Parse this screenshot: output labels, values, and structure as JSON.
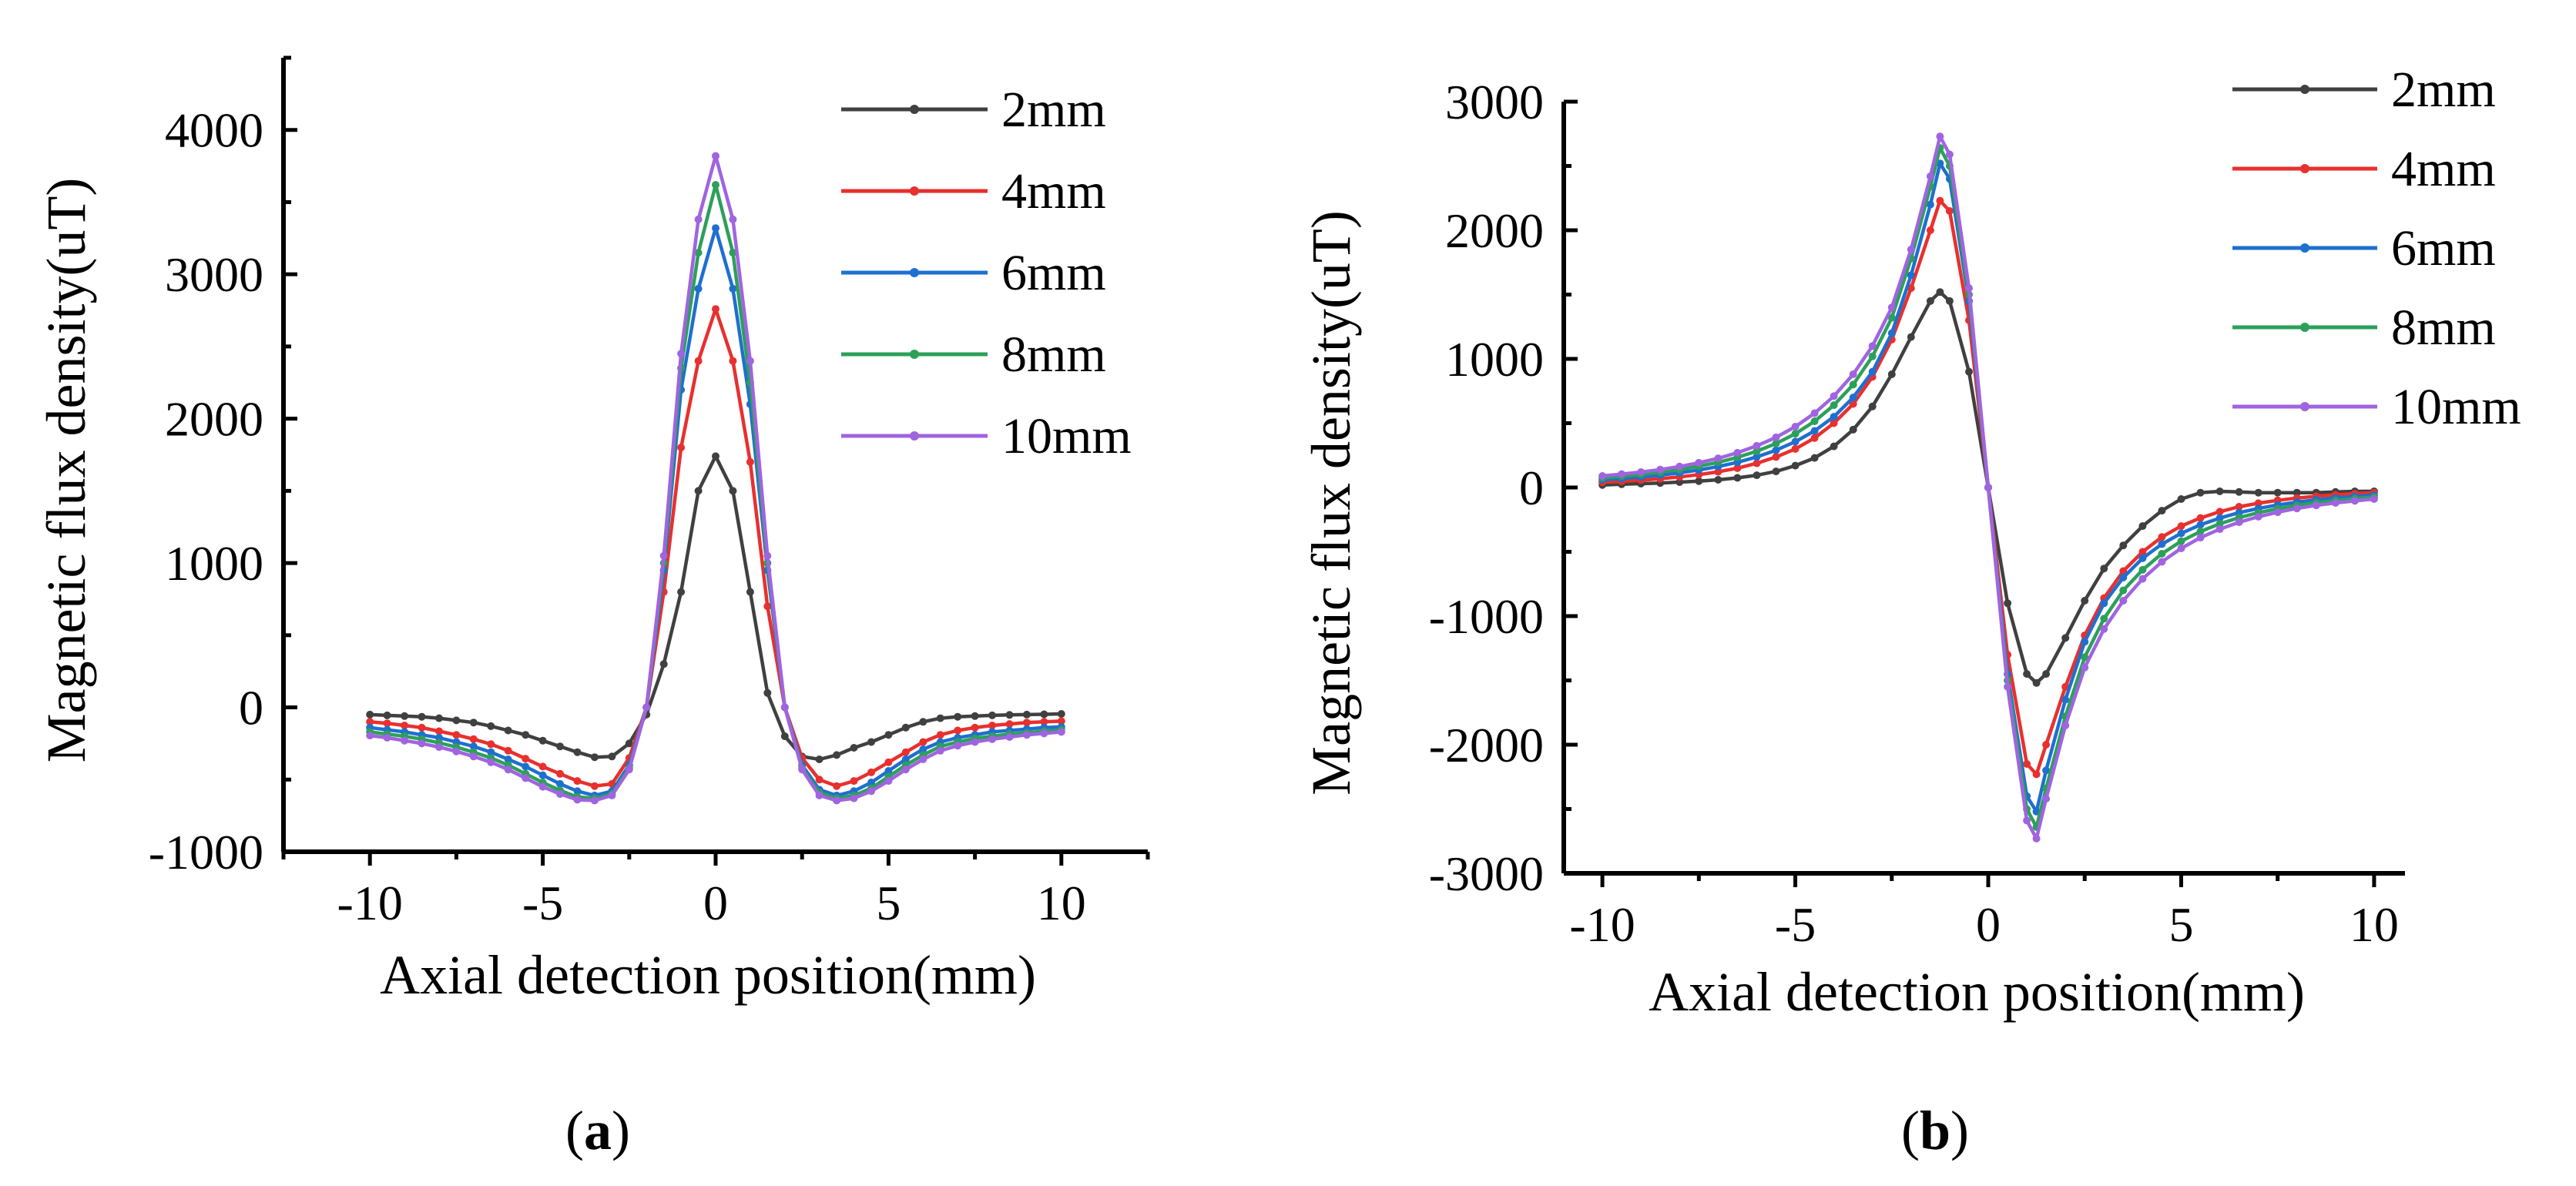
{
  "figure": {
    "panels": [
      {
        "caption_open": "(",
        "caption_letter": "a",
        "caption_close": ")"
      },
      {
        "caption_open": "(",
        "caption_letter": "b",
        "caption_close": ")"
      }
    ]
  },
  "colors": {
    "2mm": "#404040",
    "4mm": "#e8302e",
    "6mm": "#1f6fd0",
    "8mm": "#2ca05a",
    "10mm": "#a064e0"
  },
  "chart_data": [
    {
      "id": "a",
      "type": "line",
      "title": "",
      "xlabel": "Axial detection position(mm)",
      "ylabel": "Magnetic flux density(uT)",
      "xlim": [
        -12.5,
        12.5
      ],
      "ylim": [
        -1000,
        4500
      ],
      "xticks": [
        -10,
        -5,
        0,
        5,
        10
      ],
      "xtick_labels": [
        "-10",
        "-5",
        "0",
        "5",
        "10"
      ],
      "yticks": [
        -1000,
        0,
        1000,
        2000,
        3000,
        4000
      ],
      "ytick_labels": [
        "-1000",
        "0",
        "1000",
        "2000",
        "3000",
        "4000"
      ],
      "legend_position": "top-right",
      "x": [
        -10,
        -9.5,
        -9,
        -8.5,
        -8,
        -7.5,
        -7,
        -6.5,
        -6,
        -5.5,
        -5,
        -4.5,
        -4,
        -3.5,
        -3,
        -2.5,
        -2,
        -1.5,
        -1,
        -0.5,
        0,
        0.5,
        1,
        1.5,
        2,
        2.5,
        3,
        3.5,
        4,
        4.5,
        5,
        5.5,
        6,
        6.5,
        7,
        7.5,
        8,
        8.5,
        9,
        9.5,
        10
      ],
      "series": [
        {
          "name": "2mm",
          "values": [
            -50,
            -55,
            -60,
            -65,
            -75,
            -90,
            -105,
            -130,
            -160,
            -190,
            -230,
            -270,
            -310,
            -345,
            -340,
            -250,
            -50,
            300,
            800,
            1500,
            1740,
            1500,
            800,
            100,
            -200,
            -340,
            -360,
            -330,
            -280,
            -240,
            -190,
            -140,
            -100,
            -75,
            -65,
            -60,
            -55,
            -52,
            -50,
            -48,
            -45
          ]
        },
        {
          "name": "4mm",
          "values": [
            -100,
            -110,
            -125,
            -140,
            -165,
            -190,
            -220,
            -255,
            -300,
            -355,
            -410,
            -460,
            -510,
            -545,
            -530,
            -350,
            0,
            800,
            1800,
            2400,
            2760,
            2400,
            1700,
            700,
            0,
            -350,
            -500,
            -545,
            -510,
            -450,
            -380,
            -310,
            -240,
            -190,
            -160,
            -140,
            -125,
            -115,
            -105,
            -100,
            -95
          ]
        },
        {
          "name": "6mm",
          "values": [
            -140,
            -155,
            -170,
            -190,
            -210,
            -240,
            -270,
            -310,
            -360,
            -410,
            -470,
            -530,
            -580,
            -610,
            -580,
            -400,
            0,
            950,
            2200,
            2900,
            3320,
            2900,
            2100,
            950,
            0,
            -400,
            -570,
            -610,
            -580,
            -520,
            -440,
            -360,
            -290,
            -240,
            -210,
            -190,
            -170,
            -160,
            -150,
            -140,
            -135
          ]
        },
        {
          "name": "8mm",
          "values": [
            -170,
            -185,
            -200,
            -220,
            -245,
            -275,
            -310,
            -350,
            -400,
            -460,
            -520,
            -575,
            -620,
            -630,
            -600,
            -420,
            0,
            1000,
            2350,
            3150,
            3620,
            3150,
            2250,
            1000,
            0,
            -420,
            -590,
            -630,
            -610,
            -560,
            -480,
            -400,
            -330,
            -270,
            -240,
            -215,
            -200,
            -185,
            -175,
            -165,
            -155
          ]
        },
        {
          "name": "10mm",
          "values": [
            -195,
            -210,
            -230,
            -250,
            -275,
            -305,
            -340,
            -380,
            -430,
            -490,
            -550,
            -600,
            -640,
            -645,
            -610,
            -430,
            0,
            1050,
            2450,
            3380,
            3820,
            3380,
            2400,
            1050,
            0,
            -430,
            -610,
            -645,
            -630,
            -580,
            -510,
            -430,
            -360,
            -300,
            -265,
            -240,
            -220,
            -205,
            -190,
            -180,
            -170
          ]
        }
      ]
    },
    {
      "id": "b",
      "type": "line",
      "title": "",
      "xlabel": "Axial detection position(mm)",
      "ylabel": "Magnetic flux density(uT)",
      "xlim": [
        -11,
        10.8
      ],
      "ylim": [
        -3000,
        3000
      ],
      "xticks": [
        -10,
        -5,
        0,
        5,
        10
      ],
      "xtick_labels": [
        "-10",
        "-5",
        "0",
        "5",
        "10"
      ],
      "yticks": [
        -3000,
        -2000,
        -1000,
        0,
        1000,
        2000,
        3000
      ],
      "ytick_labels": [
        "-3000",
        "-2000",
        "-1000",
        "0",
        "1000",
        "2000",
        "3000"
      ],
      "legend_position": "top-right",
      "x": [
        -10,
        -9.5,
        -9,
        -8.5,
        -8,
        -7.5,
        -7,
        -6.5,
        -6,
        -5.5,
        -5,
        -4.5,
        -4,
        -3.5,
        -3,
        -2.5,
        -2,
        -1.5,
        -1.25,
        -1,
        -0.5,
        0,
        0.5,
        1,
        1.25,
        1.5,
        2,
        2.5,
        3,
        3.5,
        4,
        4.5,
        5,
        5.5,
        6,
        6.5,
        7,
        7.5,
        8,
        8.5,
        9,
        9.5,
        10
      ],
      "series": [
        {
          "name": "2mm",
          "values": [
            20,
            25,
            30,
            35,
            42,
            50,
            60,
            75,
            95,
            125,
            170,
            230,
            320,
            450,
            630,
            880,
            1170,
            1450,
            1520,
            1450,
            900,
            0,
            -900,
            -1450,
            -1520,
            -1450,
            -1170,
            -880,
            -630,
            -450,
            -300,
            -180,
            -90,
            -40,
            -30,
            -35,
            -40,
            -40,
            -40,
            -40,
            -35,
            -30,
            -30
          ]
        },
        {
          "name": "4mm",
          "values": [
            40,
            48,
            57,
            68,
            82,
            100,
            122,
            150,
            188,
            237,
            300,
            385,
            500,
            650,
            860,
            1150,
            1550,
            2000,
            2230,
            2150,
            1300,
            0,
            -1300,
            -2150,
            -2230,
            -2000,
            -1550,
            -1150,
            -860,
            -650,
            -500,
            -385,
            -300,
            -237,
            -188,
            -150,
            -122,
            -100,
            -82,
            -68,
            -57,
            -48,
            -40
          ]
        },
        {
          "name": "6mm",
          "values": [
            60,
            70,
            82,
            96,
            114,
            136,
            163,
            196,
            238,
            290,
            356,
            440,
            550,
            700,
            900,
            1200,
            1650,
            2200,
            2520,
            2400,
            1450,
            0,
            -1450,
            -2400,
            -2520,
            -2200,
            -1650,
            -1200,
            -900,
            -700,
            -550,
            -440,
            -356,
            -290,
            -238,
            -196,
            -163,
            -136,
            -114,
            -96,
            -82,
            -70,
            -60
          ]
        },
        {
          "name": "8mm",
          "values": [
            75,
            87,
            101,
            118,
            139,
            165,
            196,
            234,
            282,
            342,
            418,
            515,
            640,
            800,
            1020,
            1320,
            1780,
            2340,
            2640,
            2500,
            1500,
            0,
            -1500,
            -2500,
            -2640,
            -2340,
            -1780,
            -1320,
            -1020,
            -800,
            -640,
            -515,
            -418,
            -342,
            -282,
            -234,
            -196,
            -165,
            -139,
            -118,
            -101,
            -87,
            -75
          ]
        },
        {
          "name": "10mm",
          "values": [
            90,
            104,
            120,
            139,
            163,
            192,
            227,
            270,
            324,
            390,
            473,
            578,
            710,
            880,
            1100,
            1400,
            1850,
            2420,
            2730,
            2590,
            1550,
            0,
            -1550,
            -2590,
            -2730,
            -2420,
            -1850,
            -1400,
            -1100,
            -880,
            -710,
            -578,
            -473,
            -390,
            -324,
            -270,
            -227,
            -192,
            -163,
            -139,
            -120,
            -104,
            -90
          ]
        }
      ]
    }
  ]
}
